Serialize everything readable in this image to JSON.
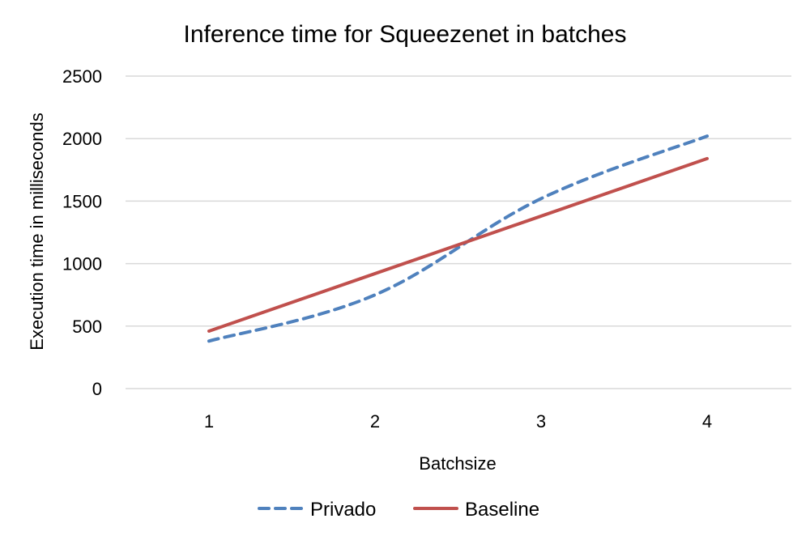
{
  "chart_data": {
    "type": "line",
    "title": "Inference time for Squeezenet in batches",
    "xlabel": "Batchsize",
    "ylabel": "Execution time in milliseconds",
    "categories": [
      "1",
      "2",
      "3",
      "4"
    ],
    "y_ticks": [
      "0",
      "500",
      "1000",
      "1500",
      "2000",
      "2500"
    ],
    "ylim": [
      0,
      2500
    ],
    "grid": true,
    "legend_position": "bottom",
    "series": [
      {
        "name": "Privado",
        "values": [
          380,
          750,
          1520,
          2020
        ],
        "color": "#4f81bd",
        "style": "dashed"
      },
      {
        "name": "Baseline",
        "values": [
          460,
          920,
          1380,
          1840
        ],
        "color": "#c0504d",
        "style": "solid"
      }
    ]
  }
}
